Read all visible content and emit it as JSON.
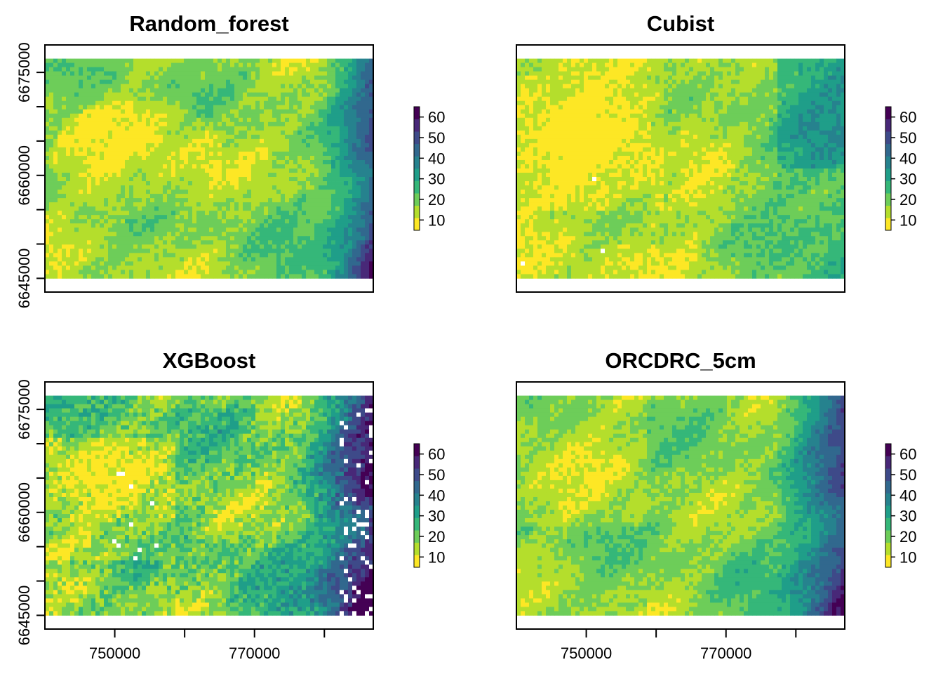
{
  "chart_data": [
    {
      "type": "heatmap",
      "title": "Random_forest",
      "xlim": [
        740000,
        787000
      ],
      "ylim": [
        6643000,
        6679000
      ],
      "extent": {
        "x": [
          740000,
          787000
        ],
        "y": [
          6645000,
          6677000
        ]
      },
      "x_ticks": [
        750000,
        760000,
        770000,
        780000
      ],
      "x_tick_labels": [
        "",
        "",
        "",
        ""
      ],
      "y_ticks": [
        6645000,
        6650000,
        6655000,
        6660000,
        6665000,
        6670000,
        6675000
      ],
      "y_tick_labels": [
        "6645000",
        "",
        "",
        "6660000",
        "",
        "",
        "6675000"
      ],
      "colorbar": {
        "range": [
          5,
          65
        ],
        "ticks": [
          10,
          20,
          30,
          40,
          50,
          60
        ],
        "labels": [
          "10",
          "20",
          "30",
          "40",
          "50",
          "60"
        ]
      },
      "pattern": "Mostly low values (10–25) across the west and centre; high values (40–60) concentrated along the eastern edge and in the south-east."
    },
    {
      "type": "heatmap",
      "title": "Cubist",
      "xlim": [
        740000,
        787000
      ],
      "ylim": [
        6643000,
        6679000
      ],
      "extent": {
        "x": [
          740000,
          787000
        ],
        "y": [
          6645000,
          6677000
        ]
      },
      "x_ticks": [
        750000,
        760000,
        770000,
        780000
      ],
      "x_tick_labels": [
        "",
        "",
        "",
        ""
      ],
      "y_ticks": [
        6645000,
        6650000,
        6655000,
        6660000,
        6665000,
        6670000,
        6675000
      ],
      "y_tick_labels": [
        "",
        "",
        "",
        "",
        "",
        "",
        ""
      ],
      "colorbar": {
        "range": [
          5,
          65
        ],
        "ticks": [
          10,
          20,
          30,
          40,
          50,
          60
        ],
        "labels": [
          "10",
          "20",
          "30",
          "40",
          "50",
          "60"
        ]
      },
      "pattern": "Very low values (5–15) in the west-centre; moderate values (25–40) in the east; few missing cells."
    },
    {
      "type": "heatmap",
      "title": "XGBoost",
      "xlim": [
        740000,
        787000
      ],
      "ylim": [
        6643000,
        6679000
      ],
      "extent": {
        "x": [
          740000,
          787000
        ],
        "y": [
          6645000,
          6677000
        ]
      },
      "x_ticks": [
        750000,
        760000,
        770000,
        780000
      ],
      "x_tick_labels": [
        "750000",
        "",
        "770000",
        ""
      ],
      "y_ticks": [
        6645000,
        6650000,
        6655000,
        6660000,
        6665000,
        6670000,
        6675000
      ],
      "y_tick_labels": [
        "6645000",
        "",
        "",
        "6660000",
        "",
        "",
        "6675000"
      ],
      "colorbar": {
        "range": [
          5,
          65
        ],
        "ticks": [
          10,
          20,
          30,
          40,
          50,
          60
        ],
        "labels": [
          "10",
          "20",
          "30",
          "40",
          "50",
          "60"
        ]
      },
      "pattern": "Noisier field; low values in the west; very high values (50–65) and missing cells along the eastern edge."
    },
    {
      "type": "heatmap",
      "title": "ORCDRC_5cm",
      "xlim": [
        740000,
        787000
      ],
      "ylim": [
        6643000,
        6679000
      ],
      "extent": {
        "x": [
          740000,
          787000
        ],
        "y": [
          6645000,
          6677000
        ]
      },
      "x_ticks": [
        750000,
        760000,
        770000,
        780000
      ],
      "x_tick_labels": [
        "750000",
        "",
        "770000",
        ""
      ],
      "y_ticks": [
        6645000,
        6650000,
        6655000,
        6660000,
        6665000,
        6670000,
        6675000
      ],
      "y_tick_labels": [
        "",
        "",
        "",
        "",
        "",
        "",
        ""
      ],
      "colorbar": {
        "range": [
          5,
          65
        ],
        "ticks": [
          10,
          20,
          30,
          40,
          50,
          60
        ],
        "labels": [
          "10",
          "20",
          "30",
          "40",
          "50",
          "60"
        ]
      },
      "pattern": "Low values in the west-centre; values rising to 40–55 toward the east."
    }
  ],
  "colors": {
    "viridis_reversed": [
      "#FDE725",
      "#B4DE2C",
      "#6DCD59",
      "#35B779",
      "#1F9E89",
      "#26828E",
      "#31688E",
      "#3E4A89",
      "#482878",
      "#440154"
    ],
    "missing": "#ffffff"
  }
}
